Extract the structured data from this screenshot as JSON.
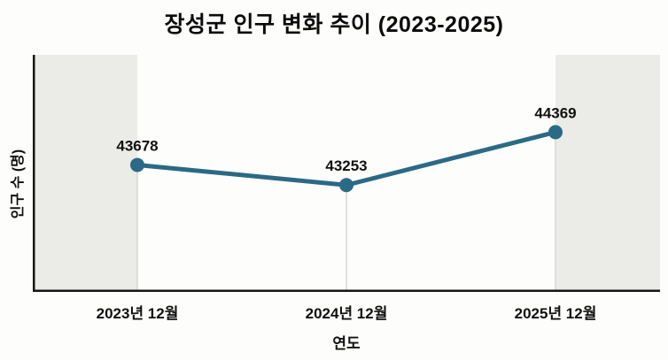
{
  "title": "장성군 인구 변화 추이 (2023-2025)",
  "colors": {
    "line": "#2b6a85",
    "marker": "#2b6a85",
    "band": "#ebebe8",
    "drop_line": "#d7d7d4",
    "axis": "#161616",
    "text": "#111111",
    "background": "#fdfdfc"
  },
  "chart_data": {
    "type": "line",
    "title": "장성군 인구 변화 추이 (2023-2025)",
    "categories": [
      "2023년 12월",
      "2024년 12월",
      "2025년 12월"
    ],
    "values": [
      43678,
      43253,
      44369
    ],
    "point_labels": [
      "43678",
      "43253",
      "44369"
    ],
    "xlabel": "연도",
    "ylabel": "인구 수 (명)",
    "ylim": [
      41000,
      46000
    ],
    "series_name": "인구 수",
    "legend": "none",
    "grid": "vertical drop lines from each point to x-axis",
    "style_notes": "outer left and right thirds of plot area shaded light gray; y-axis has no tick labels"
  }
}
